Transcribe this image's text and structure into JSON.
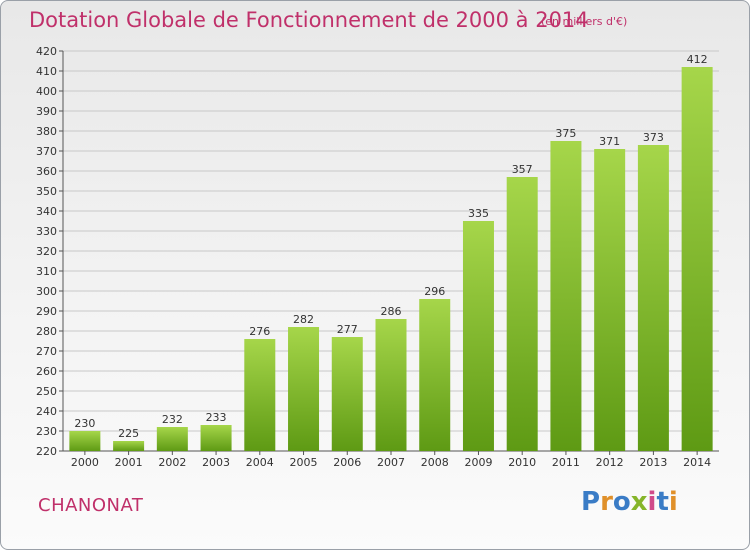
{
  "header": {
    "title": "Dotation Globale de Fonctionnement de 2000 à 2014",
    "unit": "(en milliers d'€)"
  },
  "footer": {
    "commune": "CHANONAT",
    "brand": "Proxiti",
    "brand_colors": [
      "#3a7cc6",
      "#e0902a",
      "#3a7cc6",
      "#86b52a",
      "#d04a8a",
      "#3a7cc6",
      "#e0902a"
    ]
  },
  "colors": {
    "title": "#c0306a",
    "bar_top": "#a6d64a",
    "bar_bottom": "#5e9a14",
    "grid": "#c8c8c8",
    "axis_text": "#333333"
  },
  "chart_data": {
    "type": "bar",
    "title": "Dotation Globale de Fonctionnement de 2000 à 2014",
    "subtitle": "(en milliers d'€)",
    "xlabel": "",
    "ylabel": "",
    "categories": [
      "2000",
      "2001",
      "2002",
      "2003",
      "2004",
      "2005",
      "2006",
      "2007",
      "2008",
      "2009",
      "2010",
      "2011",
      "2012",
      "2013",
      "2014"
    ],
    "values": [
      230,
      225,
      232,
      233,
      276,
      282,
      277,
      286,
      296,
      335,
      357,
      375,
      371,
      373,
      412
    ],
    "ylim": [
      220,
      420
    ],
    "yticks": [
      220,
      230,
      240,
      250,
      260,
      270,
      280,
      290,
      300,
      310,
      320,
      330,
      340,
      350,
      360,
      370,
      380,
      390,
      400,
      410,
      420
    ],
    "grid": true,
    "data_labels": true
  }
}
